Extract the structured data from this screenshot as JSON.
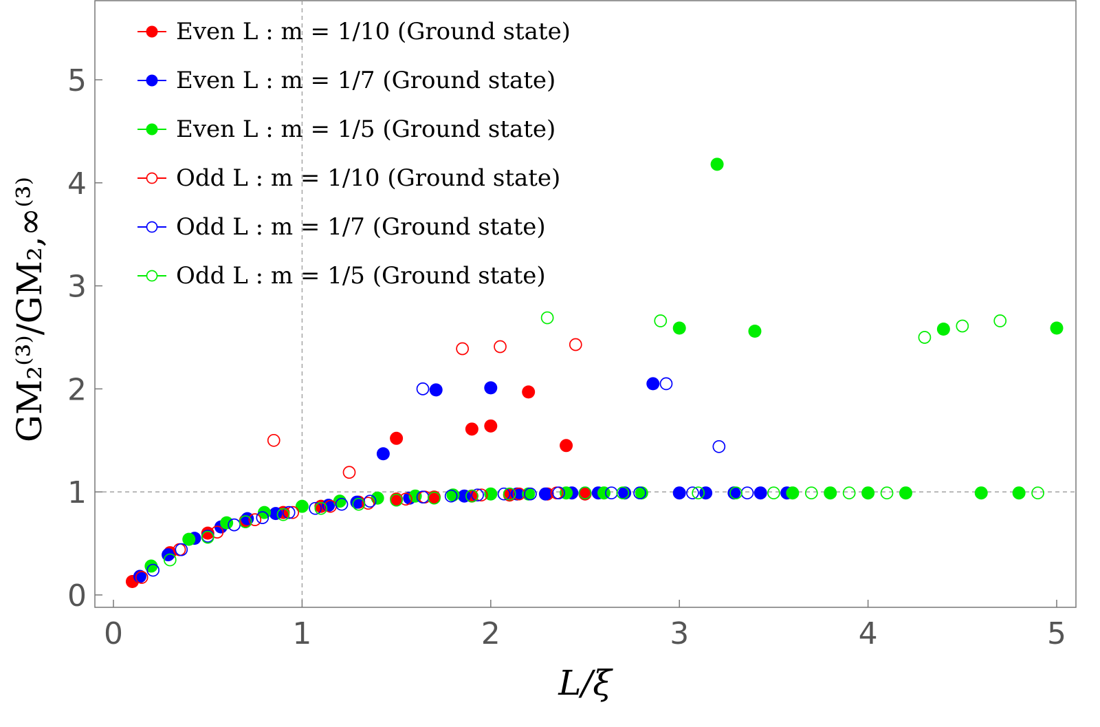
{
  "chart_data": {
    "type": "scatter",
    "title": "",
    "xlabel": "L/ξ",
    "ylabel": "GM₂⁽³⁾/GM₂,∞⁽³⁾",
    "xlim": [
      -0.1,
      5.1
    ],
    "ylim": [
      -0.1,
      5.8
    ],
    "xticks": [
      0,
      1,
      2,
      3,
      4,
      5
    ],
    "yticks": [
      0,
      1,
      2,
      3,
      4,
      5
    ],
    "reference_lines": {
      "x": 1,
      "y": 1
    },
    "legend_position": "top-left",
    "series": [
      {
        "name": "Even L : m = 1/10 (Ground state)",
        "color": "#ff0000",
        "filled": true,
        "points": [
          [
            0.1,
            0.13
          ],
          [
            0.3,
            0.41
          ],
          [
            0.5,
            0.6
          ],
          [
            0.7,
            0.72
          ],
          [
            0.9,
            0.8
          ],
          [
            1.1,
            0.86
          ],
          [
            1.3,
            0.9
          ],
          [
            1.5,
            0.93
          ],
          [
            1.7,
            0.95
          ],
          [
            1.9,
            0.96
          ],
          [
            2.1,
            0.97
          ],
          [
            2.3,
            0.98
          ],
          [
            2.5,
            0.98
          ],
          [
            1.5,
            1.52
          ],
          [
            1.9,
            1.61
          ],
          [
            2.0,
            1.64
          ],
          [
            2.2,
            1.97
          ],
          [
            2.4,
            1.45
          ]
        ]
      },
      {
        "name": "Even L : m = 1/7 (Ground state)",
        "color": "#0000ff",
        "filled": true,
        "points": [
          [
            0.14,
            0.18
          ],
          [
            0.29,
            0.39
          ],
          [
            0.43,
            0.55
          ],
          [
            0.57,
            0.66
          ],
          [
            0.71,
            0.74
          ],
          [
            0.86,
            0.79
          ],
          [
            1.14,
            0.87
          ],
          [
            1.29,
            0.9
          ],
          [
            1.57,
            0.94
          ],
          [
            1.86,
            0.96
          ],
          [
            2.14,
            0.98
          ],
          [
            2.29,
            0.98
          ],
          [
            2.43,
            0.99
          ],
          [
            2.57,
            0.99
          ],
          [
            2.71,
            0.99
          ],
          [
            3.0,
            0.99
          ],
          [
            3.14,
            0.99
          ],
          [
            3.29,
            0.99
          ],
          [
            3.43,
            0.99
          ],
          [
            3.57,
            0.99
          ],
          [
            1.43,
            1.37
          ],
          [
            1.71,
            1.99
          ],
          [
            2.0,
            2.01
          ],
          [
            2.86,
            2.05
          ]
        ]
      },
      {
        "name": "Even L : m = 1/5 (Ground state)",
        "color": "#00ee00",
        "filled": true,
        "points": [
          [
            0.2,
            0.28
          ],
          [
            0.4,
            0.54
          ],
          [
            0.6,
            0.7
          ],
          [
            0.8,
            0.8
          ],
          [
            1.0,
            0.86
          ],
          [
            1.2,
            0.91
          ],
          [
            1.4,
            0.94
          ],
          [
            1.6,
            0.96
          ],
          [
            1.8,
            0.97
          ],
          [
            2.0,
            0.98
          ],
          [
            2.2,
            0.98
          ],
          [
            2.4,
            0.99
          ],
          [
            2.6,
            0.99
          ],
          [
            2.8,
            0.99
          ],
          [
            3.6,
            0.99
          ],
          [
            3.8,
            0.99
          ],
          [
            4.0,
            0.99
          ],
          [
            4.2,
            0.99
          ],
          [
            4.6,
            0.99
          ],
          [
            4.8,
            0.99
          ],
          [
            3.2,
            4.18
          ],
          [
            3.0,
            2.59
          ],
          [
            3.4,
            2.56
          ],
          [
            4.4,
            2.58
          ],
          [
            5.0,
            2.59
          ]
        ]
      },
      {
        "name": "Odd L : m = 1/10 (Ground state)",
        "color": "#ff0000",
        "filled": false,
        "points": [
          [
            0.15,
            0.17
          ],
          [
            0.35,
            0.44
          ],
          [
            0.55,
            0.61
          ],
          [
            0.75,
            0.73
          ],
          [
            0.95,
            0.8
          ],
          [
            1.15,
            0.86
          ],
          [
            1.35,
            0.89
          ],
          [
            1.55,
            0.93
          ],
          [
            1.65,
            0.95
          ],
          [
            1.95,
            0.97
          ],
          [
            2.15,
            0.98
          ],
          [
            2.35,
            0.99
          ],
          [
            0.85,
            1.5
          ],
          [
            1.25,
            1.19
          ],
          [
            1.85,
            2.39
          ],
          [
            2.05,
            2.41
          ],
          [
            2.45,
            2.43
          ]
        ]
      },
      {
        "name": "Odd L : m = 1/7 (Ground state)",
        "color": "#0000ff",
        "filled": false,
        "points": [
          [
            0.21,
            0.24
          ],
          [
            0.36,
            0.44
          ],
          [
            0.5,
            0.57
          ],
          [
            0.64,
            0.68
          ],
          [
            0.79,
            0.75
          ],
          [
            0.93,
            0.8
          ],
          [
            1.07,
            0.84
          ],
          [
            1.21,
            0.88
          ],
          [
            1.36,
            0.91
          ],
          [
            1.64,
            0.95
          ],
          [
            1.79,
            0.96
          ],
          [
            1.93,
            0.97
          ],
          [
            2.07,
            0.98
          ],
          [
            2.21,
            0.98
          ],
          [
            2.36,
            0.99
          ],
          [
            2.5,
            0.99
          ],
          [
            2.64,
            0.99
          ],
          [
            2.79,
            0.99
          ],
          [
            3.07,
            0.99
          ],
          [
            3.36,
            0.99
          ],
          [
            1.64,
            2.0
          ],
          [
            2.93,
            2.05
          ],
          [
            3.21,
            1.44
          ]
        ]
      },
      {
        "name": "Odd L : m = 1/5 (Ground state)",
        "color": "#00ee00",
        "filled": false,
        "points": [
          [
            0.3,
            0.34
          ],
          [
            0.5,
            0.56
          ],
          [
            0.7,
            0.71
          ],
          [
            0.9,
            0.78
          ],
          [
            1.1,
            0.84
          ],
          [
            1.3,
            0.88
          ],
          [
            1.5,
            0.92
          ],
          [
            1.7,
            0.94
          ],
          [
            1.9,
            0.96
          ],
          [
            2.1,
            0.98
          ],
          [
            2.5,
            0.99
          ],
          [
            2.7,
            0.99
          ],
          [
            3.1,
            0.99
          ],
          [
            3.3,
            0.99
          ],
          [
            3.5,
            0.99
          ],
          [
            3.7,
            0.99
          ],
          [
            3.9,
            0.99
          ],
          [
            4.1,
            0.99
          ],
          [
            4.9,
            0.99
          ],
          [
            2.3,
            2.69
          ],
          [
            2.9,
            2.66
          ],
          [
            4.3,
            2.5
          ],
          [
            4.5,
            2.61
          ],
          [
            4.7,
            2.66
          ]
        ]
      }
    ]
  }
}
